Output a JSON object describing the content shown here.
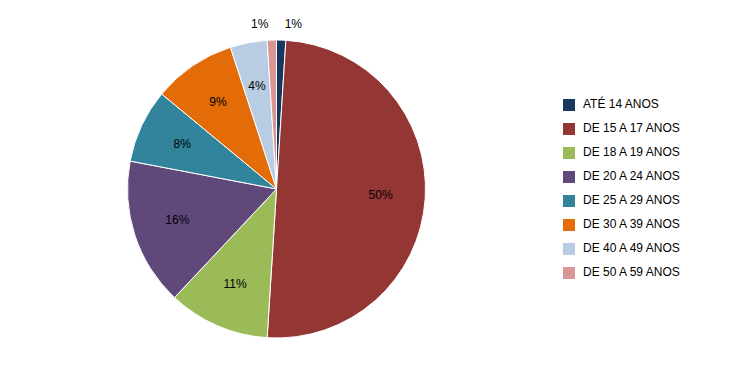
{
  "chart_data": {
    "type": "pie",
    "categories": [
      "ATÉ 14 ANOS",
      "DE 15 A 17 ANOS",
      "DE 18 A 19 ANOS",
      "DE 20 A 24 ANOS",
      "DE 25 A 29 ANOS",
      "DE 30 A 39 ANOS",
      "DE 40 A 49 ANOS",
      "DE 50 A 59 ANOS"
    ],
    "values": [
      1,
      50,
      11,
      16,
      8,
      9,
      4,
      1
    ],
    "value_labels": [
      "1%",
      "50%",
      "11%",
      "16%",
      "8%",
      "9%",
      "4%",
      "1%"
    ],
    "colors": [
      "#17375E",
      "#943634",
      "#9BBB59",
      "#60497A",
      "#31849B",
      "#E36C09",
      "#B8CCE4",
      "#D99694"
    ],
    "data_labels": true,
    "legend": "right"
  }
}
